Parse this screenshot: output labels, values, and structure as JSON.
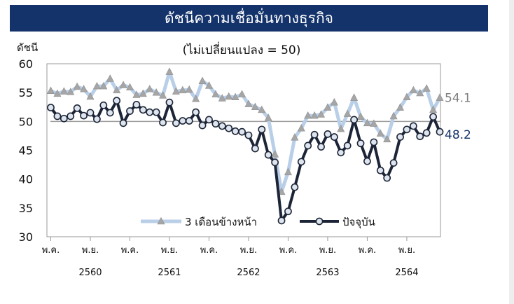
{
  "banner": {
    "title": "ดัชนีความเชื่อมั่นทางธุรกิจ"
  },
  "chart_data": {
    "type": "line",
    "title": "",
    "subtitle": "(ไม่เปลี่ยนแปลง = 50)",
    "ylabel": "ดัชนี",
    "xlabel": "",
    "ylim": [
      30,
      60
    ],
    "yticks": [
      30,
      35,
      40,
      45,
      50,
      55,
      60
    ],
    "x_ticks": [
      {
        "idx": 0,
        "month": "พ.ค.",
        "year": ""
      },
      {
        "idx": 6,
        "month": "พ.ย.",
        "year": "2560"
      },
      {
        "idx": 12,
        "month": "พ.ค.",
        "year": ""
      },
      {
        "idx": 18,
        "month": "พ.ย.",
        "year": "2561"
      },
      {
        "idx": 24,
        "month": "พ.ค.",
        "year": ""
      },
      {
        "idx": 30,
        "month": "พ.ย.",
        "year": "2562"
      },
      {
        "idx": 36,
        "month": "พ.ค.",
        "year": ""
      },
      {
        "idx": 42,
        "month": "พ.ย.",
        "year": "2563"
      },
      {
        "idx": 48,
        "month": "พ.ค.",
        "year": ""
      },
      {
        "idx": 54,
        "month": "พ.ย.",
        "year": "2564"
      }
    ],
    "reference_line": 50,
    "grid": false,
    "legend_position": "bottom-center",
    "series": [
      {
        "name": "3 เดือนข้างหน้า",
        "color": "#b9cfe8",
        "marker": "triangle",
        "marker_color": "#a6a6a6",
        "end_label": "54.1",
        "end_label_color": "#7f7f7f",
        "values": [
          55.3,
          54.8,
          55.2,
          55.1,
          56.0,
          55.6,
          54.3,
          56.1,
          56.1,
          57.4,
          55.4,
          56.3,
          55.9,
          54.6,
          54.8,
          55.6,
          55.0,
          54.5,
          58.6,
          55.2,
          55.4,
          55.5,
          53.9,
          57.0,
          56.2,
          54.7,
          54.0,
          54.3,
          54.2,
          54.7,
          53.0,
          52.5,
          52.0,
          50.6,
          44.3,
          37.8,
          41.2,
          47.2,
          48.8,
          51.0,
          51.0,
          51.2,
          52.4,
          53.3,
          48.7,
          51.3,
          54.1,
          50.8,
          49.7,
          49.6,
          47.9,
          46.9,
          50.9,
          52.4,
          54.2,
          55.4,
          54.9,
          55.7,
          52.0,
          54.1
        ]
      },
      {
        "name": "ปัจจุบัน",
        "color": "#1c2537",
        "marker": "circle",
        "marker_color": "#dfe5ee",
        "end_label": "48.2",
        "end_label_color": "#14336b",
        "values": [
          52.4,
          50.9,
          50.5,
          50.9,
          52.3,
          51.0,
          51.5,
          50.4,
          52.8,
          51.5,
          53.6,
          49.7,
          51.8,
          52.9,
          52.0,
          51.6,
          51.6,
          49.8,
          53.3,
          49.7,
          50.1,
          50.1,
          51.6,
          49.3,
          50.3,
          49.6,
          49.2,
          48.8,
          48.3,
          48.2,
          47.6,
          45.3,
          48.6,
          44.2,
          42.9,
          32.8,
          34.4,
          38.6,
          43.0,
          45.8,
          47.7,
          45.6,
          47.8,
          47.3,
          44.6,
          45.8,
          50.3,
          46.2,
          43.1,
          46.4,
          41.5,
          40.2,
          42.8,
          47.3,
          48.6,
          49.2,
          47.4,
          48.0,
          50.8,
          48.2
        ]
      }
    ]
  }
}
